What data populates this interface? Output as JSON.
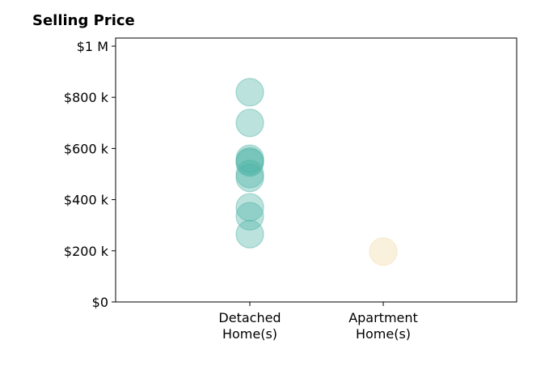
{
  "chart_data": {
    "type": "scatter",
    "title": "Selling Price",
    "xlabel": "",
    "ylabel": "",
    "categories": [
      "Detached\nHome(s)",
      "Apartment\nHome(s)"
    ],
    "ylim": [
      0,
      1000000
    ],
    "y_ticks": [
      {
        "value": 0,
        "label": "$0"
      },
      {
        "value": 200000,
        "label": "$200 k"
      },
      {
        "value": 400000,
        "label": "$400 k"
      },
      {
        "value": 600000,
        "label": "$600 k"
      },
      {
        "value": 800000,
        "label": "$800 k"
      },
      {
        "value": 1000000,
        "label": "$1 M"
      }
    ],
    "series": [
      {
        "category": "Detached\nHome(s)",
        "color": "#4db3a5",
        "values": [
          820000,
          700000,
          560000,
          550000,
          545000,
          500000,
          485000,
          370000,
          335000,
          265000
        ]
      },
      {
        "category": "Apartment\nHome(s)",
        "color": "#f2d9a6",
        "values": [
          197000
        ]
      }
    ],
    "grid": false,
    "legend": "none"
  }
}
